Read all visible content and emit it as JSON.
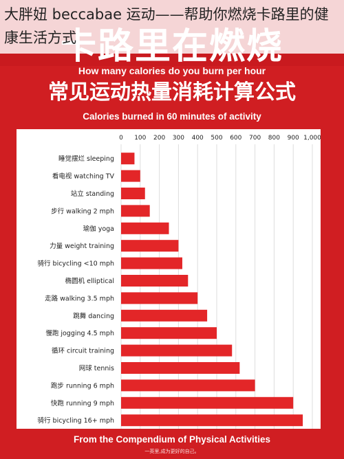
{
  "watermark_title": "卡路里在燃烧",
  "overlay_caption": "大胖妞 beccabae 运动——帮助你燃烧卡路里的健康生活方式",
  "subtitle_en": "How many calories do you burn per hour",
  "subtitle_cn": "常见运动热量消耗计算公式",
  "subtitle_en2": "Calories burned in 60 minutes of activity",
  "footer_en": "From the Compendium of Physical Activities",
  "footer_small": "一英里,成为更好的自己。",
  "colors": {
    "poster_red": "#d01e22",
    "bar_red": "#e32628",
    "panel": "#ffffff",
    "grid": "#dddddd"
  },
  "chart_data": {
    "type": "bar",
    "orientation": "horizontal",
    "title": "常见运动热量消耗计算公式",
    "xlim": [
      0,
      1000
    ],
    "x_ticks": [
      "0",
      "100",
      "200",
      "300",
      "400",
      "500",
      "600",
      "700",
      "800",
      "900",
      "1,000"
    ],
    "grid": true,
    "categories": [
      "睡觉摆烂 sleeping",
      "看电视 watching TV",
      "站立 standing",
      "步行 walking 2 mph",
      "瑜伽 yoga",
      "力量 weight training",
      "骑行 bicycling <10 mph",
      "椭圆机 elliptical",
      "走路 walking 3.5 mph",
      "跳舞 dancing",
      "慢跑 jogging 4.5 mph",
      "循环 circuit training",
      "网球 tennis",
      "跑步 running 6 mph",
      "快跑 running 9 mph",
      "骑行 bicycling 16+ mph"
    ],
    "values": [
      70,
      100,
      125,
      150,
      250,
      300,
      320,
      350,
      400,
      450,
      500,
      580,
      620,
      700,
      900,
      950
    ]
  }
}
